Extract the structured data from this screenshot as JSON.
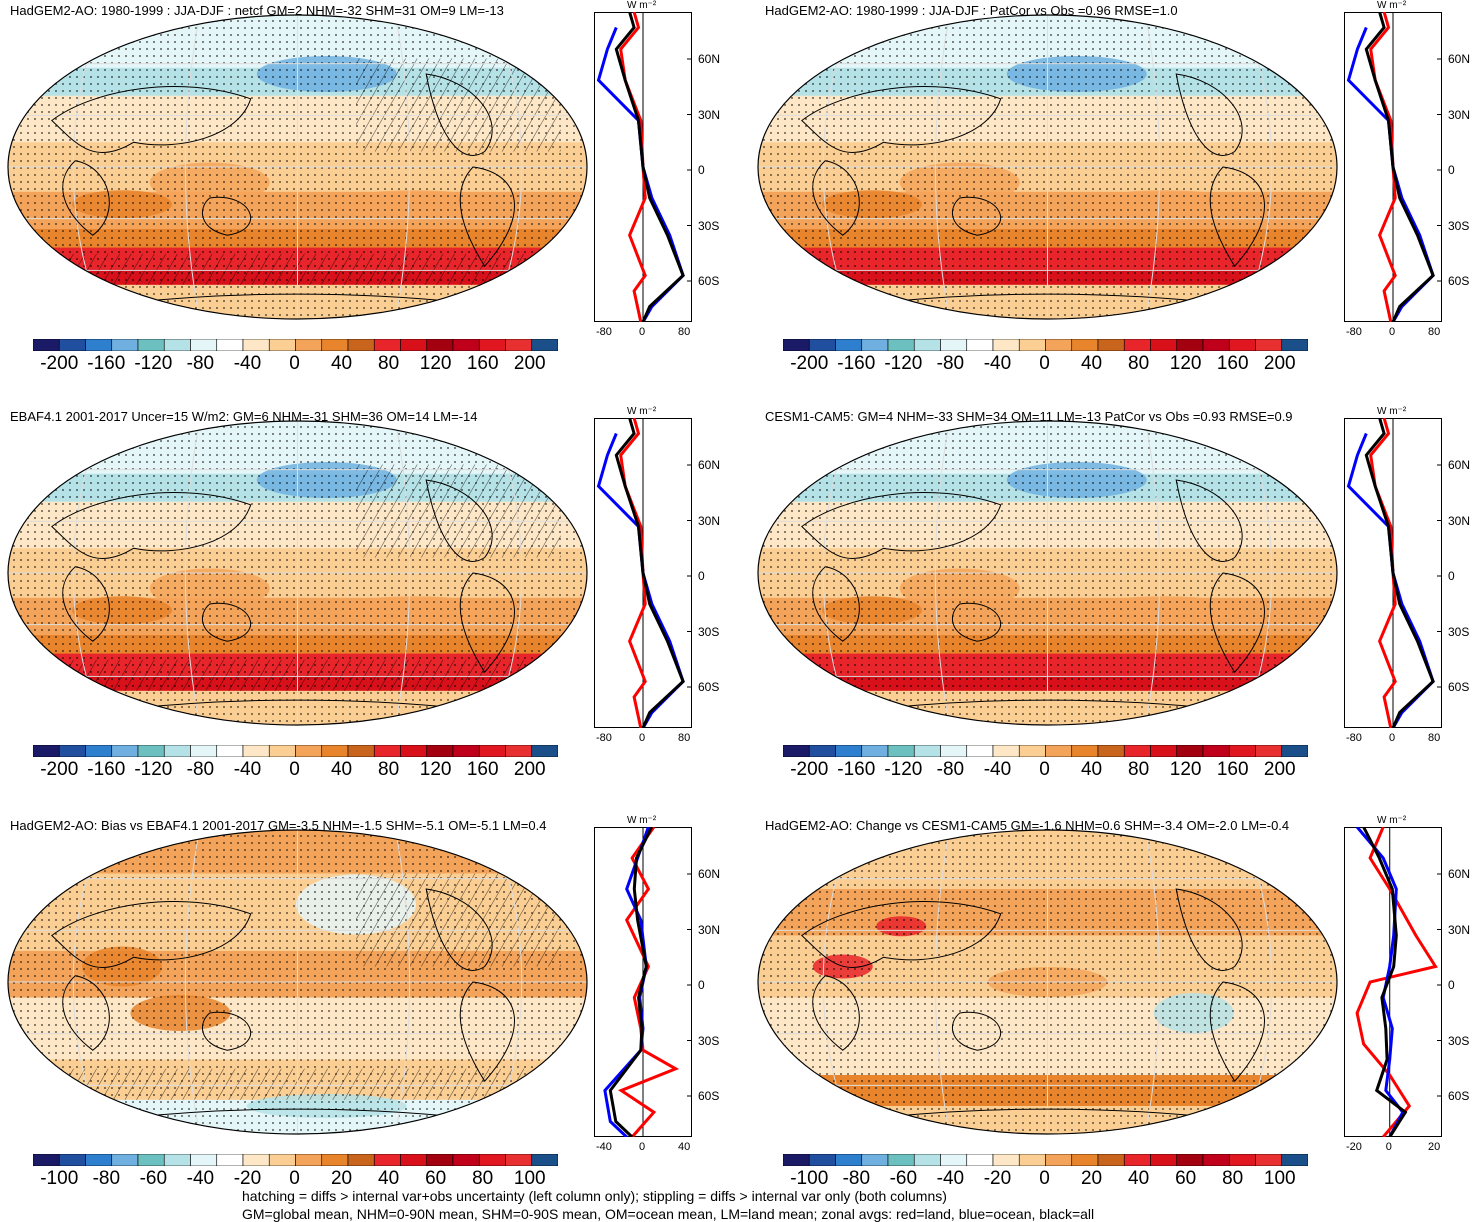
{
  "panels": [
    {
      "title": "HadGEM2-AO: 1980-1999 : JJA-DJF : netcf GM=2 NHM=-32 SHM=31 OM=9 LM=-13",
      "cbar_labels": [
        "-200",
        "-160",
        "-120",
        "-80",
        "-40",
        "0",
        "40",
        "80",
        "120",
        "160",
        "200"
      ],
      "zonal_x_labels": [
        "-80",
        "0",
        "80"
      ]
    },
    {
      "title": "HadGEM2-AO: 1980-1999 : JJA-DJF : PatCor vs Obs =0.96 RMSE=1.0",
      "cbar_labels": [
        "-200",
        "-160",
        "-120",
        "-80",
        "-40",
        "0",
        "40",
        "80",
        "120",
        "160",
        "200"
      ],
      "zonal_x_labels": [
        "-80",
        "0",
        "80"
      ]
    },
    {
      "title": "EBAF4.1 2001-2017 Uncer=15 W/m2: GM=6 NHM=-31 SHM=36 OM=14 LM=-14",
      "cbar_labels": [
        "-200",
        "-160",
        "-120",
        "-80",
        "-40",
        "0",
        "40",
        "80",
        "120",
        "160",
        "200"
      ],
      "zonal_x_labels": [
        "-80",
        "0",
        "80"
      ]
    },
    {
      "title": "CESM1-CAM5: GM=4 NHM=-33 SHM=34 OM=11 LM=-13 PatCor vs Obs =0.93 RMSE=0.9",
      "cbar_labels": [
        "-200",
        "-160",
        "-120",
        "-80",
        "-40",
        "0",
        "40",
        "80",
        "120",
        "160",
        "200"
      ],
      "zonal_x_labels": [
        "-80",
        "0",
        "80"
      ]
    },
    {
      "title": "HadGEM2-AO: Bias vs EBAF4.1 2001-2017 GM=-3.5 NHM=-1.5 SHM=-5.1 OM=-5.1 LM=0.4",
      "cbar_labels": [
        "-100",
        "-80",
        "-60",
        "-40",
        "-20",
        "0",
        "20",
        "40",
        "60",
        "80",
        "100"
      ],
      "zonal_x_labels": [
        "-40",
        "0",
        "40"
      ]
    },
    {
      "title": "HadGEM2-AO: Change vs CESM1-CAM5 GM=-1.6 NHM=0.6 SHM=-3.4 OM=-2.0 LM=-0.4",
      "cbar_labels": [
        "-100",
        "-80",
        "-60",
        "-40",
        "-20",
        "0",
        "20",
        "40",
        "60",
        "80",
        "100"
      ],
      "zonal_x_labels": [
        "-20",
        "0",
        "20"
      ]
    }
  ],
  "lat_labels": [
    "60N",
    "30N",
    "0",
    "30S",
    "60S"
  ],
  "unit_label": "W m⁻²",
  "colors": [
    "#1a1a66",
    "#1f4f9e",
    "#2f7fcf",
    "#6fb0e0",
    "#6cc0c0",
    "#b5e2e6",
    "#e4f6f8",
    "#ffffff",
    "#fde7c6",
    "#fbcf94",
    "#f4a45a",
    "#e8842c",
    "#c8641c",
    "#e8252a",
    "#d8101a",
    "#a30010",
    "#c0001a",
    "#e01620",
    "#e83030",
    "#1a4f8a"
  ],
  "legend": {
    "land": "#ff0000",
    "ocean": "#0000ff",
    "all": "#000000"
  },
  "footer": {
    "line1": "hatching = diffs > internal var+obs uncertainty (left column only); stippling = diffs > internal var only (both columns)",
    "line2": "GM=global mean, NHM=0-90N mean, SHM=0-90S mean, OM=ocean mean, LM=land mean; zonal avgs: red=land, blue=ocean, black=all"
  }
}
